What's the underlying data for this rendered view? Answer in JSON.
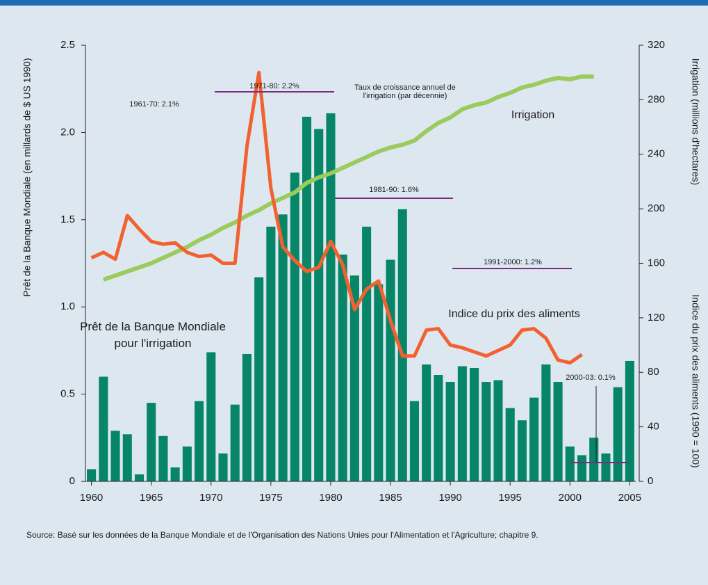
{
  "chart_data": {
    "type": "bar-line",
    "y_label": "Prêt de la Banque Mondiale (en millards de $ US 1990)",
    "y2_labels": [
      "Irrigation (millions d'hectares)",
      "Indice du prix des aliments (1990 = 100)"
    ],
    "xlim": [
      1959.5,
      2005.5
    ],
    "xticks": [
      1960,
      1965,
      1970,
      1975,
      1980,
      1985,
      1990,
      1995,
      2000,
      2005
    ],
    "ylim": [
      0,
      2.5
    ],
    "yticks": [
      0,
      0.5,
      {
        "value": 1,
        "label": "1.0"
      },
      1.5,
      {
        "value": 2,
        "label": "2.0"
      },
      2.5
    ],
    "y2lim": [
      0,
      320
    ],
    "y2ticks": [
      0,
      40,
      80,
      120,
      160,
      200,
      240,
      280,
      320
    ],
    "series": [
      {
        "name": "Prêt de la Banque Mondiale pour l'irrigation",
        "type": "bar",
        "color": "#078667",
        "x": [
          1960,
          1961,
          1962,
          1963,
          1964,
          1965,
          1966,
          1967,
          1968,
          1969,
          1970,
          1971,
          1972,
          1973,
          1974,
          1975,
          1976,
          1977,
          1978,
          1979,
          1980,
          1981,
          1982,
          1983,
          1984,
          1985,
          1986,
          1987,
          1988,
          1989,
          1990,
          1991,
          1992,
          1993,
          1994,
          1995,
          1996,
          1997,
          1998,
          1999,
          2000,
          2001,
          2002,
          2003,
          2004,
          2005
        ],
        "values": [
          0.07,
          0.6,
          0.29,
          0.27,
          0.04,
          0.45,
          0.26,
          0.08,
          0.2,
          0.46,
          0.74,
          0.16,
          0.44,
          0.73,
          1.17,
          1.46,
          1.53,
          1.77,
          2.09,
          2.02,
          2.11,
          1.3,
          1.18,
          1.46,
          1.13,
          1.27,
          1.56,
          0.46,
          0.67,
          0.61,
          0.57,
          0.66,
          0.65,
          0.57,
          0.58,
          0.42,
          0.35,
          0.48,
          0.67,
          0.57,
          0.2,
          0.15,
          0.25,
          0.16,
          0.54,
          0.69
        ]
      },
      {
        "name": "Irrigation",
        "type": "line",
        "axis": "y2",
        "color": "#9acb5c",
        "x": [
          1961,
          1962,
          1963,
          1964,
          1965,
          1966,
          1967,
          1968,
          1969,
          1970,
          1971,
          1972,
          1973,
          1974,
          1975,
          1976,
          1977,
          1978,
          1979,
          1980,
          1981,
          1982,
          1983,
          1984,
          1985,
          1986,
          1987,
          1988,
          1989,
          1990,
          1991,
          1992,
          1993,
          1994,
          1995,
          1996,
          1997,
          1998,
          1999,
          2000,
          2001,
          2002
        ],
        "values": [
          148,
          151,
          154,
          157,
          160,
          164,
          168,
          172,
          177,
          181,
          186,
          190,
          195,
          199,
          204,
          208,
          212,
          219,
          223,
          226,
          230,
          234,
          238,
          242,
          245,
          247,
          250,
          257,
          263,
          267,
          273,
          276,
          278,
          282,
          285,
          289,
          291,
          294,
          296,
          295,
          297,
          297
        ]
      },
      {
        "name": "Indice du prix des aliments",
        "type": "line",
        "axis": "y2",
        "color": "#f2612f",
        "x": [
          1960,
          1961,
          1962,
          1963,
          1964,
          1965,
          1966,
          1967,
          1968,
          1969,
          1970,
          1971,
          1972,
          1973,
          1974,
          1975,
          1976,
          1977,
          1978,
          1979,
          1980,
          1981,
          1982,
          1983,
          1984,
          1985,
          1986,
          1987,
          1988,
          1989,
          1990,
          1991,
          1992,
          1993,
          1994,
          1995,
          1996,
          1997,
          1998,
          1999,
          2000,
          2001
        ],
        "values": [
          164,
          168,
          163,
          195,
          185,
          176,
          174,
          175,
          168,
          165,
          166,
          160,
          160,
          246,
          300,
          215,
          172,
          162,
          154,
          157,
          176,
          159,
          126,
          141,
          147,
          118,
          92,
          92,
          111,
          112,
          100,
          98,
          95,
          92,
          96,
          100,
          111,
          112,
          105,
          89,
          87,
          93
        ]
      }
    ],
    "annotations": [
      "1961-70: 2.1%",
      "1971-80: 2.2%",
      "1981-90: 1.6%",
      "1991-2000: 1.2%",
      "2000-03: 0.1%"
    ],
    "note": "Taux de croissance annuel de l'irrigation (par décennie)",
    "source": "Source: Basé sur les données de la Banque Mondiale et de l'Organisation des Nations Unies pour l'Alimentation et l'Agriculture; chapitre 9."
  }
}
